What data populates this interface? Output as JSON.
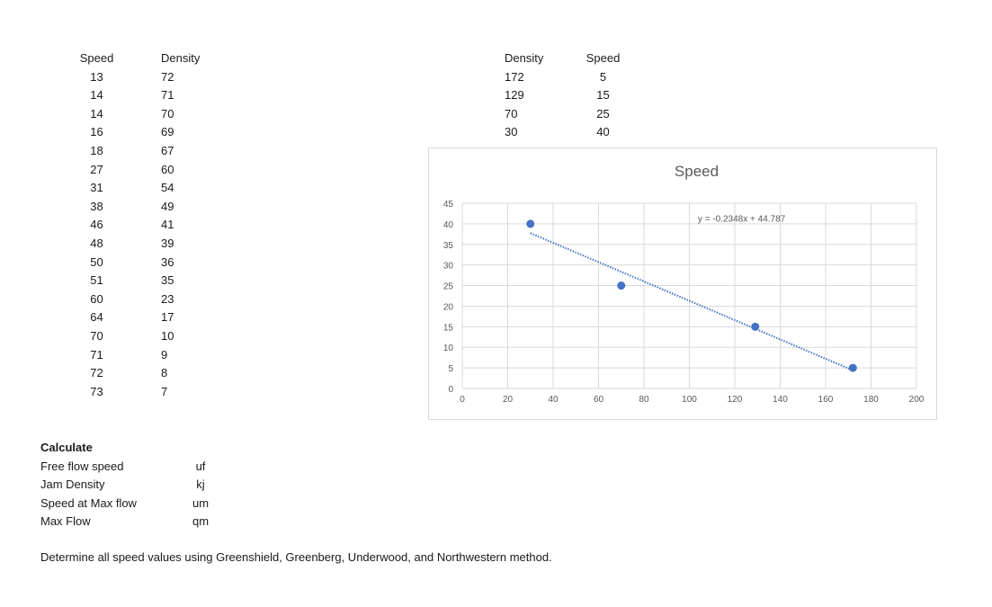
{
  "left_table": {
    "headers": [
      "Speed",
      "Density"
    ],
    "rows": [
      [
        "13",
        "72"
      ],
      [
        "14",
        "71"
      ],
      [
        "14",
        "70"
      ],
      [
        "16",
        "69"
      ],
      [
        "18",
        "67"
      ],
      [
        "27",
        "60"
      ],
      [
        "31",
        "54"
      ],
      [
        "38",
        "49"
      ],
      [
        "46",
        "41"
      ],
      [
        "48",
        "39"
      ],
      [
        "50",
        "36"
      ],
      [
        "51",
        "35"
      ],
      [
        "60",
        "23"
      ],
      [
        "64",
        "17"
      ],
      [
        "70",
        "10"
      ],
      [
        "71",
        "9"
      ],
      [
        "72",
        "8"
      ],
      [
        "73",
        "7"
      ]
    ]
  },
  "right_table": {
    "headers": [
      "Density",
      "Speed"
    ],
    "rows": [
      [
        "172",
        "5"
      ],
      [
        "129",
        "15"
      ],
      [
        "70",
        "25"
      ],
      [
        "30",
        "40"
      ]
    ]
  },
  "chart_data": {
    "type": "scatter",
    "title": "Speed",
    "xlabel": "",
    "ylabel": "",
    "xlim": [
      0,
      200
    ],
    "ylim": [
      0,
      45
    ],
    "x_ticks": [
      0,
      20,
      40,
      60,
      80,
      100,
      120,
      140,
      160,
      180,
      200
    ],
    "y_ticks": [
      0,
      5,
      10,
      15,
      20,
      25,
      30,
      35,
      40,
      45
    ],
    "grid": true,
    "series": [
      {
        "points": [
          [
            172,
            5
          ],
          [
            129,
            15
          ],
          [
            70,
            25
          ],
          [
            30,
            40
          ]
        ],
        "color": "#4472c4"
      }
    ],
    "trendline": {
      "slope": -0.2348,
      "intercept": 44.787,
      "x_range": [
        30,
        172
      ],
      "label": "y = -0.2348x + 44.787",
      "style": "dotted",
      "color": "#4472c4"
    }
  },
  "calculate": {
    "title": "Calculate",
    "items": [
      {
        "label": "Free flow speed",
        "symbol": "uf"
      },
      {
        "label": "Jam Density",
        "symbol": "kj"
      },
      {
        "label": "Speed at Max flow",
        "symbol": "um"
      },
      {
        "label": "Max Flow",
        "symbol": "qm"
      }
    ]
  },
  "instruction": "Determine all speed values using Greenshield, Greenberg, Underwood, and Northwestern method."
}
